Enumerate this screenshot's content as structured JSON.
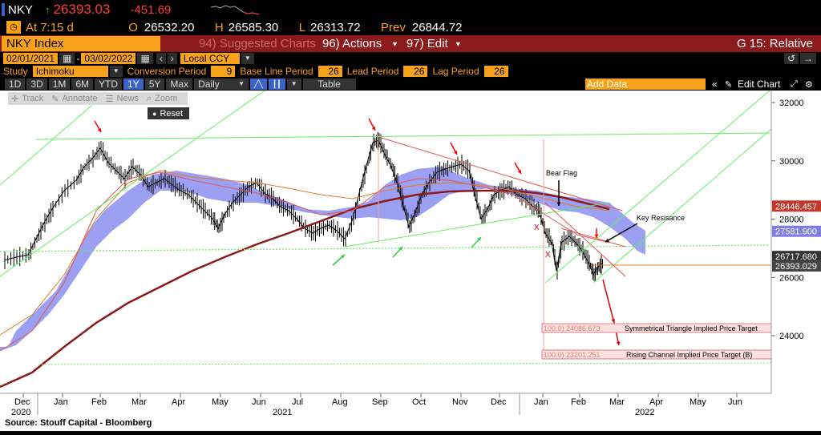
{
  "header": {
    "ticker": "NKY",
    "last": "26393.03",
    "change": "-451.69",
    "time_label": "At",
    "time": "7:15 d",
    "open_label": "O",
    "open": "26532.20",
    "high_label": "H",
    "high": "26585.30",
    "low_label": "L",
    "low": "26313.72",
    "prev_label": "Prev",
    "prev": "26844.72"
  },
  "titlebar": {
    "security": "NKY Index",
    "suggested": "94) Suggested Charts",
    "actions": "96) Actions",
    "edit": "97) Edit",
    "function": "G 15: Relative"
  },
  "datebar": {
    "start": "02/01/2021",
    "end": "03/02/2022",
    "currency": "Local CCY"
  },
  "studybar": {
    "study_label": "Study",
    "study": "Ichimoku",
    "conv_label": "Conversion Period",
    "conv": "9",
    "base_label": "Base Line Period",
    "base": "26",
    "lead_label": "Lead Period",
    "lead": "26",
    "lag_label": "Lag Period",
    "lag": "26"
  },
  "toolbar": {
    "periods": [
      "1D",
      "3D",
      "1M",
      "6M",
      "YTD",
      "1Y",
      "5Y",
      "Max"
    ],
    "selected": "1Y",
    "frequency": "Daily",
    "table": "Table",
    "add_data_placeholder": "Add Data",
    "edit_chart": "Edit Chart"
  },
  "chart_tools": {
    "track": "Track",
    "annotate": "Annotate",
    "news": "News",
    "zoom": "Zoom",
    "reset": "Reset"
  },
  "colors": {
    "amber": "#f7a21b",
    "titlebar": "#8b1a1a",
    "selected": "#3a62c7",
    "cloud": "#8a8ff0"
  },
  "chart_data": {
    "type": "line",
    "x_ticks": [
      "Dec",
      "Jan",
      "Feb",
      "Mar",
      "Apr",
      "May",
      "Jun",
      "Jul",
      "Aug",
      "Sep",
      "Oct",
      "Nov",
      "Dec",
      "Jan",
      "Feb",
      "Mar",
      "Apr",
      "May",
      "Jun"
    ],
    "x_years": [
      "2020",
      "2021",
      "2022"
    ],
    "y_ticks": [
      32000,
      30000,
      28000,
      26000,
      24000
    ],
    "ylim": [
      22200,
      32400
    ],
    "price_labels": [
      {
        "value": 28446.457,
        "label": "28446.457",
        "color": "#c0392b"
      },
      {
        "value": 27581.9,
        "label": "27581.900",
        "color": "#7f7fe0"
      },
      {
        "value": 26717.68,
        "label": "26717.680",
        "color": "#333333"
      },
      {
        "value": 26393.029,
        "label": "26393.029",
        "color": "#444444"
      }
    ],
    "annotations": {
      "bear_flag": "Bear Flag",
      "key_resistance": "Key Resisance",
      "x_mark": "X",
      "target1_value": "100.0) 24086.673",
      "target1_label": "Symmetrical Triangle Implied Price Target",
      "target2_value": "100.0) 23201.251",
      "target2_label": "Rising Channel Implied Price Target (B)"
    },
    "source": "Source: Stouff Capital - Bloomberg"
  }
}
